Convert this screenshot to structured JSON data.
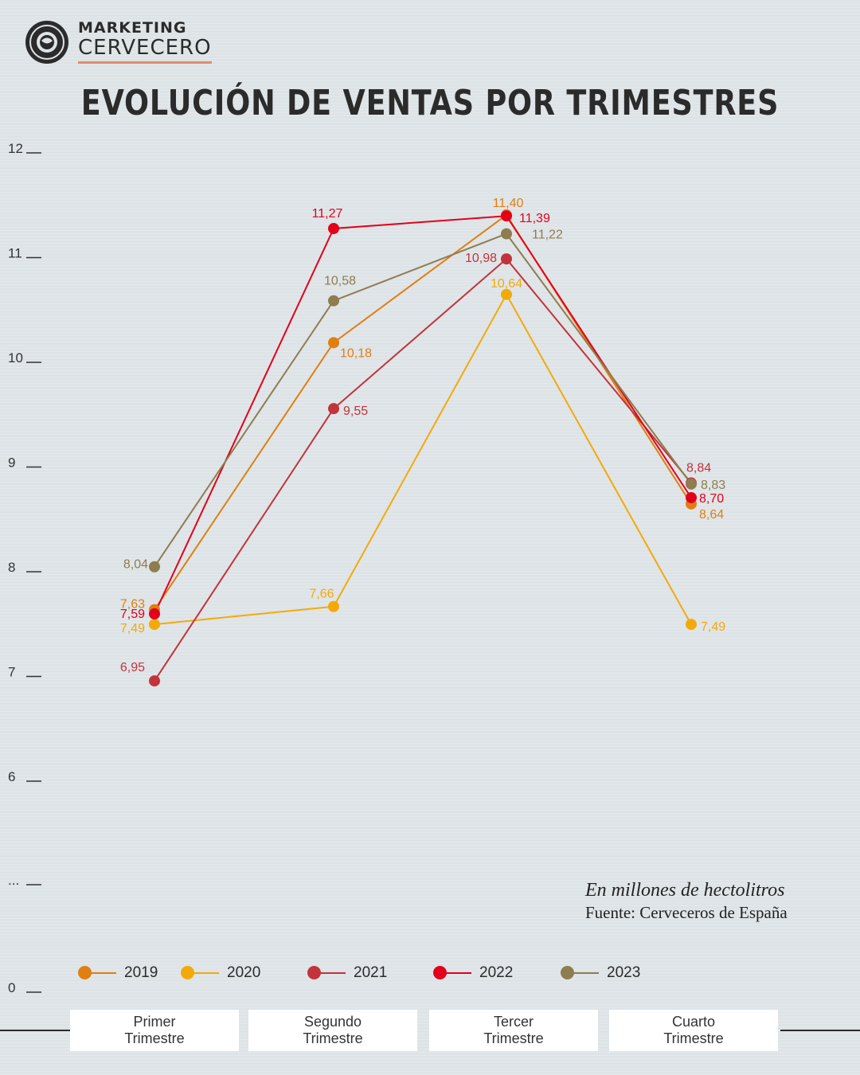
{
  "logo": {
    "line1": "MARKETING",
    "line2": "CERVECERO"
  },
  "title": "EVOLUCIÓN DE VENTAS POR TRIMESTRES",
  "note": {
    "unit": "En millones de hectolitros",
    "source": "Fuente: Cerveceros de España"
  },
  "colors": {
    "2019": "#e07f12",
    "2020": "#f2aa0a",
    "2021": "#c1343c",
    "2022": "#e3001b",
    "2023": "#8f7c4f"
  },
  "chart_data": {
    "type": "line",
    "categories": [
      "Primer\nTrimestre",
      "Segundo\nTrimestre",
      "Tercer\nTrimestre",
      "Cuarto\nTrimestre"
    ],
    "y_ticks": [
      "0",
      "...",
      "6",
      "7",
      "8",
      "9",
      "10",
      "11",
      "12"
    ],
    "ylim": [
      6,
      12
    ],
    "axis_break": true,
    "grid": false,
    "legend_position": "bottom",
    "series": [
      {
        "name": "2019",
        "values": [
          7.63,
          10.18,
          11.4,
          8.64
        ],
        "labels": [
          "7,63",
          "10,18",
          "11,40",
          "8,64"
        ]
      },
      {
        "name": "2020",
        "values": [
          7.49,
          7.66,
          10.64,
          7.49
        ],
        "labels": [
          "7,49",
          "7,66",
          "10,64",
          "7,49"
        ]
      },
      {
        "name": "2021",
        "values": [
          6.95,
          9.55,
          10.98,
          8.84
        ],
        "labels": [
          "6,95",
          "9,55",
          "10,98",
          "8,84"
        ]
      },
      {
        "name": "2022",
        "values": [
          7.59,
          11.27,
          11.39,
          8.7
        ],
        "labels": [
          "7,59",
          "11,27",
          "11,39",
          "8,70"
        ]
      },
      {
        "name": "2023",
        "values": [
          8.04,
          10.58,
          11.22,
          8.83
        ],
        "labels": [
          "8,04",
          "10,58",
          "11,22",
          "8,83"
        ]
      }
    ]
  }
}
